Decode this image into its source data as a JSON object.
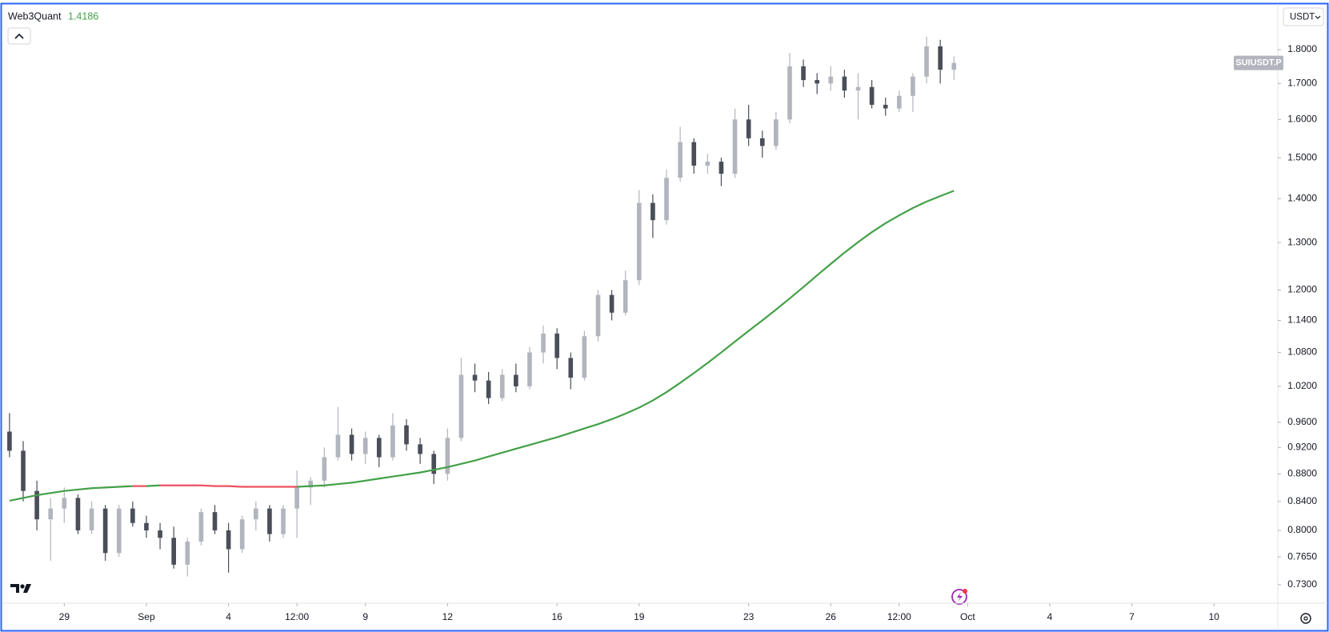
{
  "chart_data": {
    "type": "candlestick",
    "currency": "USDT",
    "x": [
      27,
      27.5,
      28,
      28.5,
      29,
      29.5,
      30,
      30.5,
      31,
      31.5,
      32,
      32.5,
      33,
      33.5,
      34,
      34.5,
      35,
      35.5,
      36,
      36.5,
      37,
      37.5,
      38,
      38.5,
      39,
      39.5,
      40,
      40.5,
      41,
      41.5,
      42,
      42.5,
      43,
      43.5,
      44,
      44.5,
      45,
      45.5,
      46,
      46.5,
      47,
      47.5,
      48,
      48.5,
      49,
      49.5,
      50,
      50.5,
      51,
      51.5,
      52,
      52.5,
      53,
      53.5,
      54,
      54.5,
      55,
      55.5,
      56,
      56.5,
      57,
      57.5,
      58,
      58.5,
      59,
      59.5,
      60,
      60.5,
      61,
      61.5
    ],
    "series": [
      {
        "name": "SUIUSDT.P",
        "up_color": "#b2b5be",
        "down_color": "#4a4e59",
        "open": [
          0.945,
          0.915,
          0.855,
          0.815,
          0.83,
          0.845,
          0.8,
          0.83,
          0.77,
          0.83,
          0.81,
          0.8,
          0.79,
          0.755,
          0.785,
          0.825,
          0.8,
          0.775,
          0.815,
          0.83,
          0.795,
          0.83,
          0.86,
          0.87,
          0.905,
          0.94,
          0.91,
          0.935,
          0.905,
          0.955,
          0.925,
          0.91,
          0.88,
          0.935,
          1.04,
          1.03,
          1.0,
          1.04,
          1.02,
          1.08,
          1.115,
          1.07,
          1.035,
          1.11,
          1.19,
          1.155,
          1.22,
          1.39,
          1.35,
          1.45,
          1.54,
          1.48,
          1.49,
          1.46,
          1.6,
          1.55,
          1.53,
          1.6,
          1.75,
          1.71,
          1.7,
          1.72,
          1.68,
          1.69,
          1.64,
          1.63,
          1.665,
          1.72,
          1.81,
          1.74
        ],
        "high": [
          0.975,
          0.93,
          0.87,
          0.845,
          0.86,
          0.85,
          0.84,
          0.835,
          0.835,
          0.84,
          0.82,
          0.81,
          0.805,
          0.79,
          0.83,
          0.835,
          0.81,
          0.82,
          0.84,
          0.835,
          0.835,
          0.885,
          0.875,
          0.92,
          0.985,
          0.95,
          0.945,
          0.94,
          0.975,
          0.965,
          0.935,
          0.915,
          0.95,
          1.07,
          1.06,
          1.045,
          1.05,
          1.06,
          1.09,
          1.13,
          1.125,
          1.08,
          1.12,
          1.2,
          1.2,
          1.24,
          1.42,
          1.41,
          1.47,
          1.58,
          1.55,
          1.51,
          1.5,
          1.63,
          1.64,
          1.57,
          1.62,
          1.79,
          1.77,
          1.73,
          1.75,
          1.74,
          1.73,
          1.71,
          1.66,
          1.68,
          1.73,
          1.84,
          1.83,
          1.78
        ],
        "low": [
          0.905,
          0.84,
          0.8,
          0.76,
          0.81,
          0.795,
          0.795,
          0.76,
          0.765,
          0.805,
          0.79,
          0.775,
          0.75,
          0.74,
          0.78,
          0.795,
          0.745,
          0.77,
          0.8,
          0.785,
          0.79,
          0.79,
          0.835,
          0.86,
          0.9,
          0.9,
          0.895,
          0.89,
          0.9,
          0.915,
          0.895,
          0.865,
          0.87,
          0.93,
          1.01,
          0.99,
          0.995,
          1.01,
          1.015,
          1.06,
          1.05,
          1.015,
          1.03,
          1.1,
          1.14,
          1.15,
          1.21,
          1.31,
          1.34,
          1.44,
          1.46,
          1.46,
          1.43,
          1.45,
          1.53,
          1.5,
          1.52,
          1.59,
          1.69,
          1.67,
          1.68,
          1.66,
          1.6,
          1.63,
          1.61,
          1.62,
          1.62,
          1.7,
          1.7,
          1.71
        ],
        "close": [
          0.915,
          0.855,
          0.815,
          0.83,
          0.845,
          0.8,
          0.83,
          0.77,
          0.83,
          0.81,
          0.8,
          0.79,
          0.755,
          0.785,
          0.825,
          0.8,
          0.775,
          0.815,
          0.83,
          0.795,
          0.83,
          0.86,
          0.87,
          0.905,
          0.94,
          0.91,
          0.935,
          0.905,
          0.955,
          0.925,
          0.91,
          0.88,
          0.935,
          1.04,
          1.03,
          1.0,
          1.04,
          1.02,
          1.08,
          1.115,
          1.07,
          1.035,
          1.11,
          1.19,
          1.155,
          1.22,
          1.39,
          1.35,
          1.45,
          1.54,
          1.48,
          1.49,
          1.46,
          1.6,
          1.55,
          1.53,
          1.6,
          1.75,
          1.71,
          1.7,
          1.72,
          1.68,
          1.69,
          1.64,
          1.63,
          1.665,
          1.72,
          1.81,
          1.74,
          1.76
        ]
      },
      {
        "name": "Web3Quant",
        "type": "line",
        "color": "#43a047",
        "falling_color": "#ef5061",
        "values": [
          0.841,
          0.845,
          0.849,
          0.852,
          0.855,
          0.857,
          0.859,
          0.86,
          0.861,
          0.862,
          0.862,
          0.863,
          0.863,
          0.863,
          0.863,
          0.862,
          0.862,
          0.861,
          0.861,
          0.861,
          0.861,
          0.861,
          0.862,
          0.863,
          0.865,
          0.867,
          0.87,
          0.873,
          0.876,
          0.879,
          0.882,
          0.886,
          0.89,
          0.895,
          0.9,
          0.906,
          0.912,
          0.918,
          0.924,
          0.93,
          0.936,
          0.943,
          0.95,
          0.957,
          0.965,
          0.974,
          0.984,
          0.996,
          1.01,
          1.026,
          1.043,
          1.061,
          1.08,
          1.1,
          1.12,
          1.14,
          1.161,
          1.183,
          1.206,
          1.23,
          1.254,
          1.278,
          1.301,
          1.323,
          1.343,
          1.361,
          1.378,
          1.393,
          1.406,
          1.4186
        ]
      }
    ],
    "xlim": [
      26.74,
      73.33
    ],
    "xticks": [
      29,
      {
        "value": 32,
        "label": "Sep"
      },
      {
        "value": 35,
        "label": "4"
      },
      {
        "value": 37.5,
        "label": "12:00"
      },
      {
        "value": 40,
        "label": "9"
      },
      {
        "value": 43,
        "label": "12"
      },
      {
        "value": 47,
        "label": "16"
      },
      {
        "value": 50,
        "label": "19"
      },
      {
        "value": 54,
        "label": "23"
      },
      {
        "value": 57,
        "label": "26"
      },
      {
        "value": 59.5,
        "label": "12:00"
      },
      {
        "value": 62,
        "label": "Oct"
      },
      {
        "value": 65,
        "label": "4"
      },
      {
        "value": 68,
        "label": "7"
      },
      {
        "value": 71,
        "label": "10"
      }
    ],
    "ylim": [
      0.7075,
      1.944
    ],
    "log_scale": true,
    "grid": false,
    "yticks": [
      {
        "value": 1.8,
        "label": "1.8000"
      },
      {
        "value": 1.7,
        "label": "1.7000"
      },
      {
        "value": 1.6,
        "label": "1.6000"
      },
      {
        "value": 1.5,
        "label": "1.5000"
      },
      {
        "value": 1.4,
        "label": "1.4000"
      },
      {
        "value": 1.3,
        "label": "1.3000"
      },
      {
        "value": 1.2,
        "label": "1.2000"
      },
      {
        "value": 1.14,
        "label": "1.1400"
      },
      {
        "value": 1.08,
        "label": "1.0800"
      },
      {
        "value": 1.02,
        "label": "1.0200"
      },
      {
        "value": 0.96,
        "label": "0.9600"
      },
      {
        "value": 0.92,
        "label": "0.9200"
      },
      {
        "value": 0.88,
        "label": "0.8800"
      },
      {
        "value": 0.84,
        "label": "0.8400"
      },
      {
        "value": 0.8,
        "label": "0.8000"
      },
      {
        "value": 0.765,
        "label": "0.7650"
      },
      {
        "value": 0.73,
        "label": "0.7300"
      }
    ]
  }
}
